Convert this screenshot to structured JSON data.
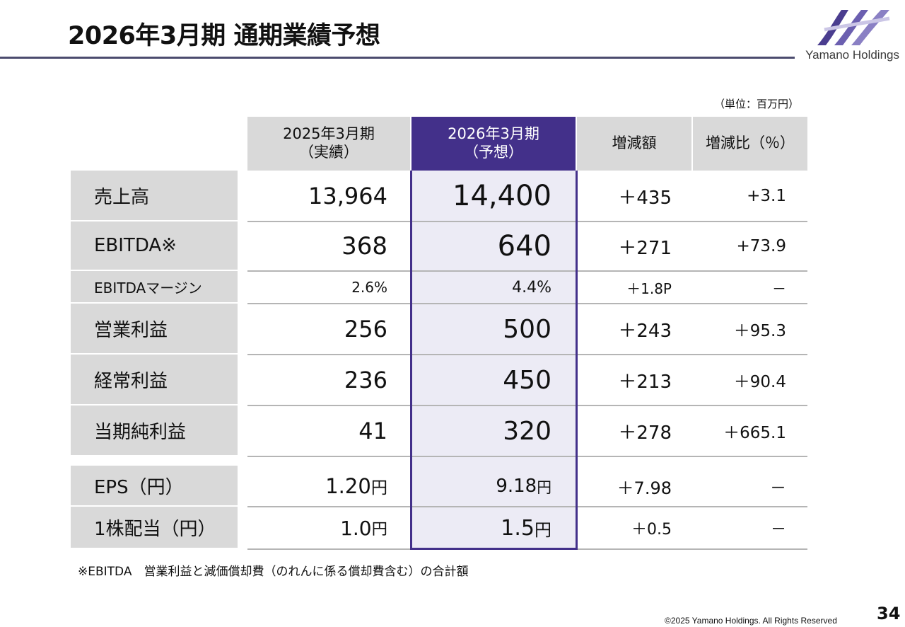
{
  "header": {
    "title": "2026年3月期 通期業績予想",
    "brand": "Yamano Holdings",
    "logo_icon": "yh-monogram-logo"
  },
  "unit_note": "（単位：百万円）",
  "table": {
    "columns": [
      {
        "line1": "2025年3月期",
        "line2": "（実績）"
      },
      {
        "line1": "2026年3月期",
        "line2": "（予想）"
      },
      {
        "line1": "増減額",
        "line2": ""
      },
      {
        "line1": "増減比（％）",
        "line2": ""
      }
    ],
    "rows": [
      {
        "label": "売上高",
        "actual": "13,964",
        "forecast": "14,400",
        "change": "＋435",
        "ratio": "+3.1"
      },
      {
        "label": "EBITDA※",
        "actual": "368",
        "forecast": "640",
        "change": "＋271",
        "ratio": "+73.9"
      },
      {
        "label": "EBITDAマージン",
        "actual": "2.6%",
        "forecast": "4.4%",
        "change": "＋1.8P",
        "ratio": "－"
      },
      {
        "label": "営業利益",
        "actual": "256",
        "forecast": "500",
        "change": "＋243",
        "ratio": "＋95.3"
      },
      {
        "label": "経常利益",
        "actual": "236",
        "forecast": "450",
        "change": "＋213",
        "ratio": "＋90.4"
      },
      {
        "label": "当期純利益",
        "actual": "41",
        "forecast": "320",
        "change": "＋278",
        "ratio": "＋665.1"
      },
      {
        "label": "EPS（円）",
        "actual": "1.20",
        "actual_unit": "円",
        "forecast": "9.18",
        "forecast_unit": "円",
        "change": "＋7.98",
        "ratio": "－"
      },
      {
        "label": "1株配当（円）",
        "actual": "1.0",
        "actual_unit": "円",
        "forecast": "1.5",
        "forecast_unit": "円",
        "change": "＋0.5",
        "ratio": "－"
      }
    ]
  },
  "footnote": "※EBITDA　営業利益と減価償却費（のれんに係る償却費含む）の合計額",
  "footer": {
    "copyright": "©2025 Yamano Holdings. All Rights Reserved",
    "page_number": "34"
  },
  "colors": {
    "accent_purple": "#43308a",
    "header_gray": "#d9d9d9",
    "forecast_column_bg": "#ecebf5",
    "title_rule": "#4b4b6e"
  }
}
